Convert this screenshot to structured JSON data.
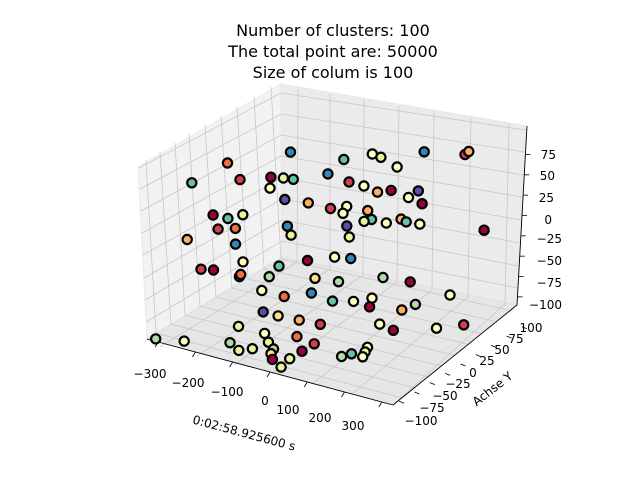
{
  "chart_data": {
    "type": "scatter",
    "projection": "3d",
    "title": [
      "Number of clusters: 100",
      "The total point are: 50000",
      "Size of colum is 100"
    ],
    "xlabel": "0:02:58.925600 s",
    "ylabel": "Achse Y",
    "zlabel": "",
    "xlim": [
      -330,
      330
    ],
    "ylim": [
      -110,
      110
    ],
    "zlim": [
      -110,
      110
    ],
    "x_ticks": [
      -300,
      -200,
      -100,
      0,
      100,
      200,
      300
    ],
    "y_ticks": [
      -100,
      -75,
      -50,
      -25,
      0,
      25,
      50,
      75,
      100
    ],
    "z_ticks": [
      -100,
      -75,
      -50,
      -25,
      0,
      25,
      50,
      75
    ],
    "x_tick_labels": [
      "−300",
      "−200",
      "−100",
      "0",
      "100",
      "200",
      "300"
    ],
    "y_tick_labels": [
      "−100",
      "−75",
      "−50",
      "−25",
      "0",
      "25",
      "50",
      "75",
      "100"
    ],
    "z_tick_labels": [
      "−100",
      "−75",
      "−50",
      "−25",
      "0",
      "25",
      "50",
      "75"
    ],
    "grid": true,
    "marker_edge_color": "#000000",
    "colors": [
      "#9e0142",
      "#d53e4f",
      "#f46d43",
      "#fdae61",
      "#fee08b",
      "#ffffbf",
      "#e6f598",
      "#abdda4",
      "#66c2a5",
      "#3288bd",
      "#5e4fa2"
    ],
    "points": [
      {
        "x": -260,
        "y": -20,
        "z": 80,
        "c": 2
      },
      {
        "x": -140,
        "y": 10,
        "z": 95,
        "c": 9
      },
      {
        "x": 30,
        "y": 40,
        "z": 100,
        "c": 5
      },
      {
        "x": 120,
        "y": 70,
        "z": 100,
        "c": 9
      },
      {
        "x": 180,
        "y": 100,
        "z": 90,
        "c": 1
      },
      {
        "x": 190,
        "y": 100,
        "z": 95,
        "c": 3
      },
      {
        "x": 80,
        "y": 50,
        "z": 85,
        "c": 5
      },
      {
        "x": -290,
        "y": -60,
        "z": 70,
        "c": 8
      },
      {
        "x": -210,
        "y": -30,
        "z": 70,
        "c": 1
      },
      {
        "x": -160,
        "y": -10,
        "z": 70,
        "c": 0
      },
      {
        "x": -100,
        "y": -10,
        "z": 75,
        "c": 8
      },
      {
        "x": -90,
        "y": -30,
        "z": 60,
        "c": 10
      },
      {
        "x": -110,
        "y": -20,
        "z": 80,
        "c": 6
      },
      {
        "x": -40,
        "y": 10,
        "z": 80,
        "c": 9
      },
      {
        "x": 0,
        "y": 20,
        "z": 70,
        "c": 1
      },
      {
        "x": 40,
        "y": 20,
        "z": 70,
        "c": 5
      },
      {
        "x": 80,
        "y": 40,
        "z": 60,
        "c": 0
      },
      {
        "x": 120,
        "y": 60,
        "z": 55,
        "c": 10
      },
      {
        "x": 110,
        "y": 50,
        "z": 50,
        "c": 5
      },
      {
        "x": -60,
        "y": -10,
        "z": 50,
        "c": 3
      },
      {
        "x": -50,
        "y": 20,
        "z": 30,
        "c": 1
      },
      {
        "x": 10,
        "y": 10,
        "z": 45,
        "c": 5
      },
      {
        "x": 50,
        "y": 20,
        "z": 40,
        "c": 3
      },
      {
        "x": 130,
        "y": 60,
        "z": 40,
        "c": 0
      },
      {
        "x": 140,
        "y": 50,
        "z": 20,
        "c": 5
      },
      {
        "x": 120,
        "y": 40,
        "z": 25,
        "c": 8
      },
      {
        "x": 60,
        "y": 20,
        "z": 30,
        "c": 8
      },
      {
        "x": 40,
        "y": 20,
        "z": 25,
        "c": 6
      },
      {
        "x": 0,
        "y": 10,
        "z": 35,
        "c": 5
      },
      {
        "x": -170,
        "y": -50,
        "z": 40,
        "c": 6
      },
      {
        "x": -210,
        "y": -50,
        "z": 30,
        "c": 8
      },
      {
        "x": -190,
        "y": -50,
        "z": 20,
        "c": 2
      },
      {
        "x": -220,
        "y": -60,
        "z": 20,
        "c": 1
      },
      {
        "x": -100,
        "y": -20,
        "z": 20,
        "c": 9
      },
      {
        "x": 10,
        "y": 10,
        "z": 20,
        "c": 10
      },
      {
        "x": 50,
        "y": 50,
        "z": 10,
        "c": 5
      },
      {
        "x": 90,
        "y": 50,
        "z": 20,
        "c": 3
      },
      {
        "x": 230,
        "y": 100,
        "z": 0,
        "c": 0
      },
      {
        "x": -270,
        "y": -80,
        "z": 10,
        "c": 3
      },
      {
        "x": -190,
        "y": -50,
        "z": 0,
        "c": 9
      },
      {
        "x": -90,
        "y": -20,
        "z": 10,
        "c": 6
      },
      {
        "x": 0,
        "y": 20,
        "z": 0,
        "c": 6
      },
      {
        "x": 20,
        "y": 10,
        "z": -20,
        "c": 9
      },
      {
        "x": 10,
        "y": -10,
        "z": -10,
        "c": 5
      },
      {
        "x": -30,
        "y": -30,
        "z": -10,
        "c": 0
      },
      {
        "x": -90,
        "y": -40,
        "z": -20,
        "c": 8
      },
      {
        "x": -170,
        "y": -50,
        "z": -20,
        "c": 5
      },
      {
        "x": -250,
        "y": -70,
        "z": -30,
        "c": 1
      },
      {
        "x": -200,
        "y": -80,
        "z": -20,
        "c": 0
      },
      {
        "x": -180,
        "y": -50,
        "z": -40,
        "c": 9
      },
      {
        "x": -160,
        "y": -60,
        "z": -30,
        "c": 2
      },
      {
        "x": -100,
        "y": -50,
        "z": -30,
        "c": 7
      },
      {
        "x": -10,
        "y": -30,
        "z": -30,
        "c": 4
      },
      {
        "x": 20,
        "y": -10,
        "z": -40,
        "c": 7
      },
      {
        "x": 90,
        "y": 20,
        "z": -40,
        "c": 7
      },
      {
        "x": 130,
        "y": 40,
        "z": -50,
        "c": 0
      },
      {
        "x": 220,
        "y": 50,
        "z": -60,
        "c": 5
      },
      {
        "x": -120,
        "y": -50,
        "z": -50,
        "c": 5
      },
      {
        "x": -60,
        "y": -50,
        "z": -50,
        "c": 2
      },
      {
        "x": -20,
        "y": -30,
        "z": -50,
        "c": 9
      },
      {
        "x": 20,
        "y": -20,
        "z": -60,
        "c": 8
      },
      {
        "x": 60,
        "y": -10,
        "z": -60,
        "c": 5
      },
      {
        "x": 60,
        "y": 20,
        "z": -70,
        "c": 5
      },
      {
        "x": 70,
        "y": 10,
        "z": -75,
        "c": 0
      },
      {
        "x": 140,
        "y": 20,
        "z": -75,
        "c": 3
      },
      {
        "x": 160,
        "y": 30,
        "z": -70,
        "c": 7
      },
      {
        "x": -100,
        "y": -60,
        "z": -70,
        "c": 10
      },
      {
        "x": -60,
        "y": -60,
        "z": -70,
        "c": 4
      },
      {
        "x": -20,
        "y": -50,
        "z": -75,
        "c": 3
      },
      {
        "x": 20,
        "y": -40,
        "z": -80,
        "c": 1
      },
      {
        "x": 130,
        "y": -10,
        "z": -80,
        "c": 5
      },
      {
        "x": -150,
        "y": -70,
        "z": -90,
        "c": 6
      },
      {
        "x": -80,
        "y": -70,
        "z": -90,
        "c": 5
      },
      {
        "x": -10,
        "y": -60,
        "z": -90,
        "c": 2
      },
      {
        "x": 150,
        "y": 0,
        "z": -90,
        "c": 0
      },
      {
        "x": 200,
        "y": 40,
        "z": -100,
        "c": 5
      },
      {
        "x": 240,
        "y": 60,
        "z": -100,
        "c": 1
      },
      {
        "x": 130,
        "y": -30,
        "z": -100,
        "c": 5
      },
      {
        "x": 120,
        "y": -50,
        "z": -100,
        "c": 8
      },
      {
        "x": 20,
        "y": -50,
        "z": -100,
        "c": 1
      },
      {
        "x": -70,
        "y": -70,
        "z": -100,
        "c": 6
      },
      {
        "x": -140,
        "y": -90,
        "z": -100,
        "c": 7
      },
      {
        "x": -290,
        "y": -120,
        "z": -100,
        "c": 7
      },
      {
        "x": -230,
        "y": -110,
        "z": -100,
        "c": 5
      },
      {
        "x": -80,
        "y": -90,
        "z": -100,
        "c": 6
      },
      {
        "x": -40,
        "y": -80,
        "z": -100,
        "c": 7
      },
      {
        "x": -100,
        "y": -100,
        "z": -100,
        "c": 6
      },
      {
        "x": -30,
        "y": -90,
        "z": -100,
        "c": 4
      },
      {
        "x": 20,
        "y": -90,
        "z": -100,
        "c": 6
      },
      {
        "x": 110,
        "y": -60,
        "z": -100,
        "c": 7
      },
      {
        "x": 140,
        "y": -40,
        "z": -100,
        "c": 6
      },
      {
        "x": 150,
        "y": -50,
        "z": -100,
        "c": 5
      },
      {
        "x": 20,
        "y": -70,
        "z": -100,
        "c": 0
      },
      {
        "x": -10,
        "y": -100,
        "z": -100,
        "c": 0
      },
      {
        "x": 30,
        "y": -110,
        "z": -100,
        "c": 6
      },
      {
        "x": -80,
        "y": -60,
        "z": 90,
        "c": 5
      },
      {
        "x": -200,
        "y": -80,
        "z": 50,
        "c": 0
      },
      {
        "x": -30,
        "y": 30,
        "z": 90,
        "c": 8
      },
      {
        "x": 60,
        "y": 30,
        "z": 60,
        "c": 3
      },
      {
        "x": 20,
        "y": 60,
        "z": 85,
        "c": 6
      }
    ]
  }
}
